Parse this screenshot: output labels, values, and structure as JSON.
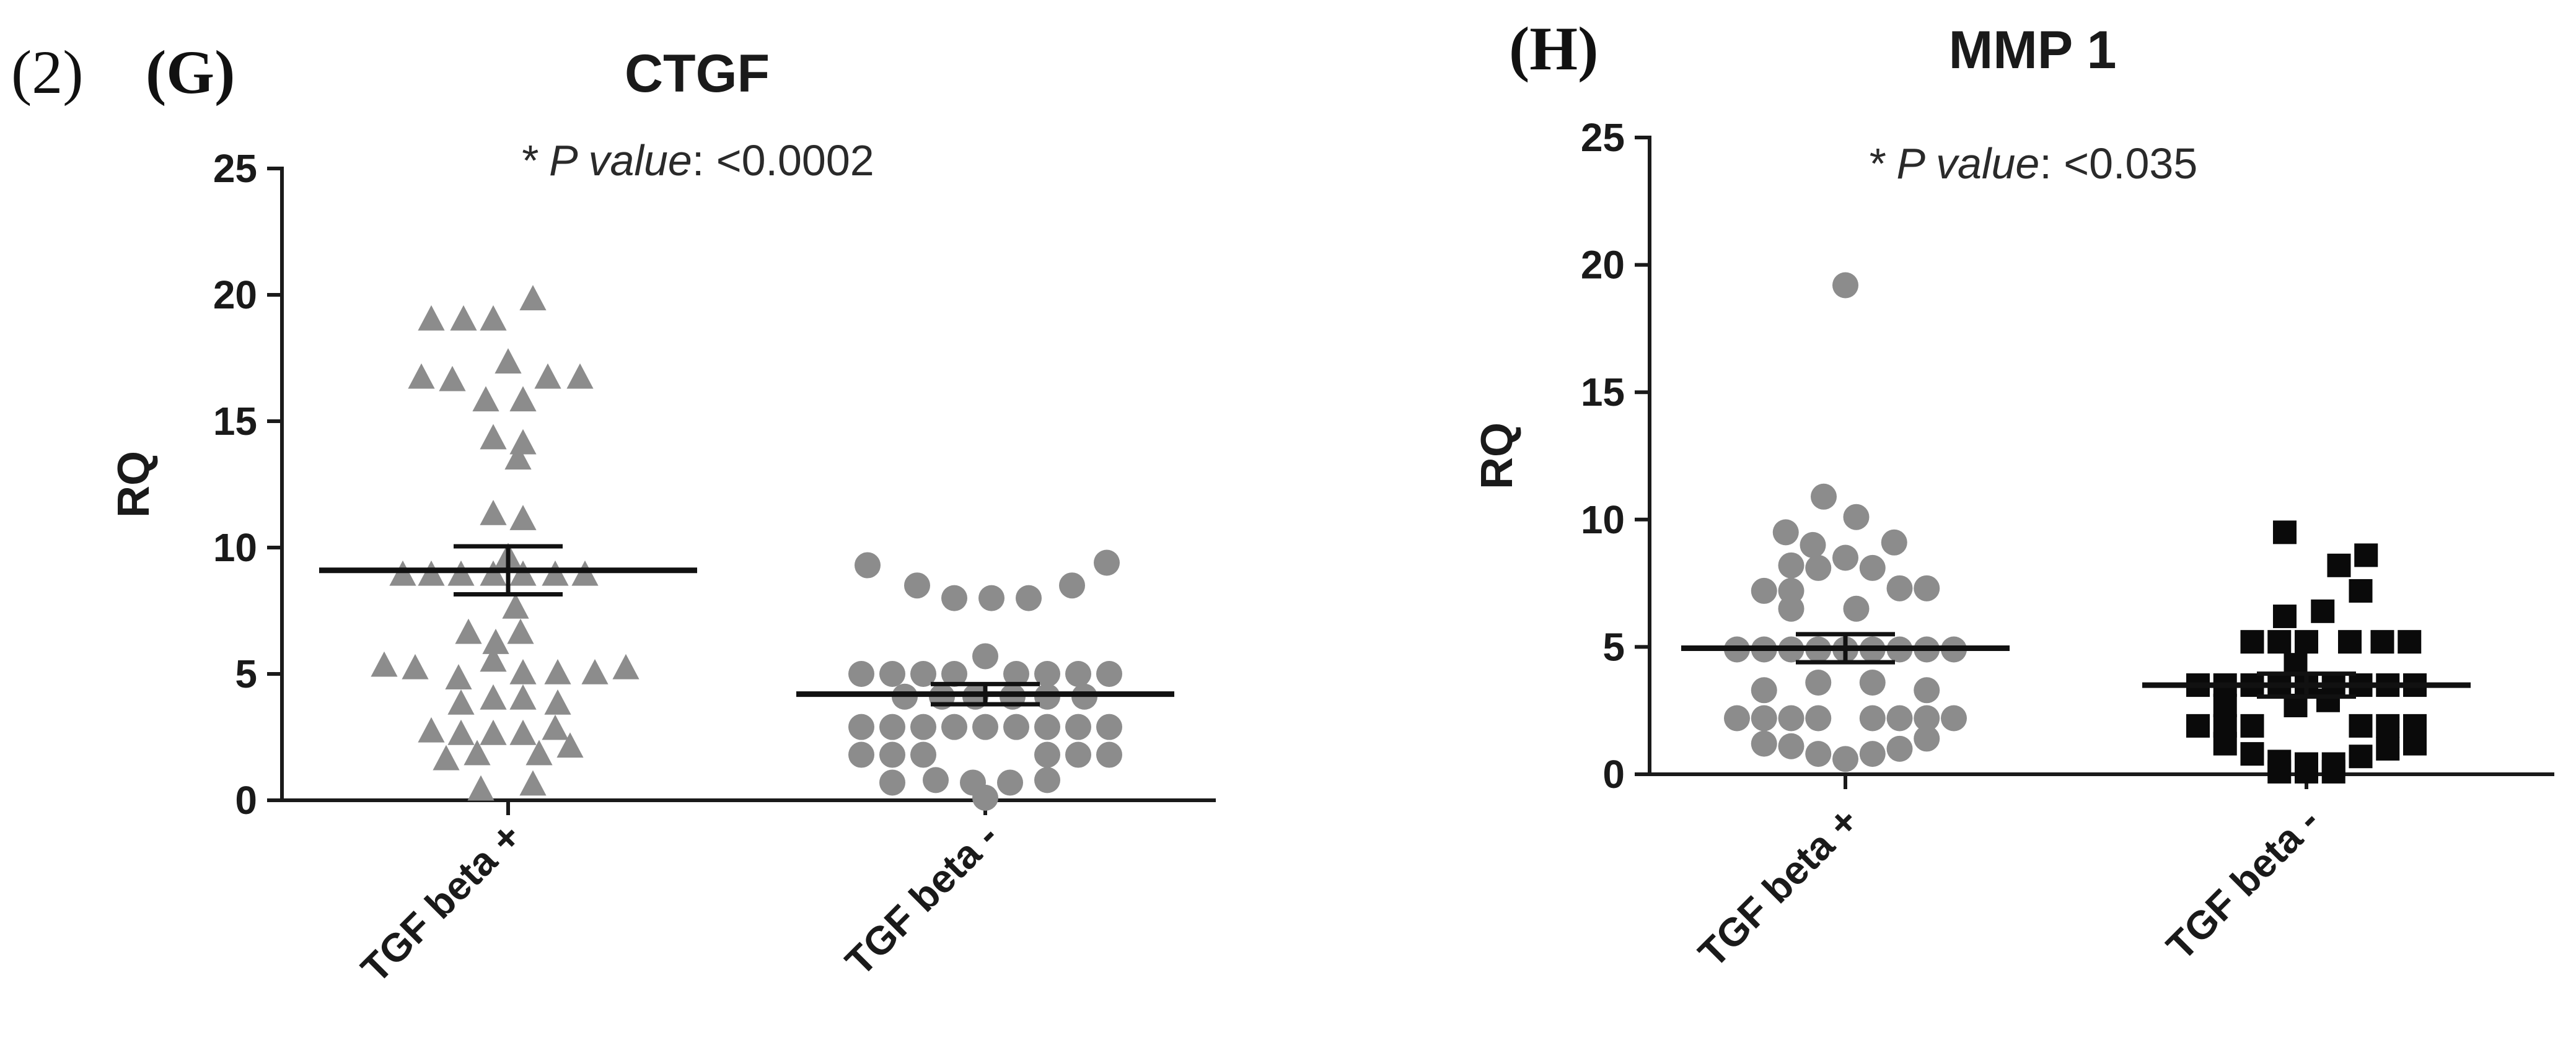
{
  "figure_label": "(2)",
  "colors": {
    "gray_marker": "#8c8c8c",
    "black_marker": "#0a0a0a",
    "axis": "#1a1a1a"
  },
  "chart_data": [
    {
      "panel": "(G)",
      "type": "scatter",
      "title": "CTGF",
      "annotation": {
        "prefix": "* ",
        "p_label": "P value",
        "suffix": ": <0.0002"
      },
      "ylabel": "RQ",
      "ylim": [
        0,
        25
      ],
      "yticks": [
        "0",
        "5",
        "10",
        "15",
        "20",
        "25"
      ],
      "categories": [
        "TGF beta +",
        "TGF beta -"
      ],
      "series": [
        {
          "name": "TGF beta +",
          "marker": "triangle",
          "color": "#8c8c8c",
          "mean": 9.1,
          "sem": 0.95,
          "points": [
            [
              -0.62,
              19.0
            ],
            [
              -0.36,
              19.0
            ],
            [
              -0.12,
              19.0
            ],
            [
              0.2,
              19.8
            ],
            [
              -0.7,
              16.7
            ],
            [
              -0.45,
              16.6
            ],
            [
              0.0,
              17.3
            ],
            [
              0.32,
              16.7
            ],
            [
              0.58,
              16.7
            ],
            [
              -0.18,
              15.8
            ],
            [
              0.12,
              15.8
            ],
            [
              -0.12,
              14.3
            ],
            [
              0.12,
              14.1
            ],
            [
              0.08,
              13.5
            ],
            [
              -0.12,
              11.3
            ],
            [
              0.12,
              11.1
            ],
            [
              0.0,
              9.6
            ],
            [
              -0.85,
              8.9
            ],
            [
              -0.62,
              8.9
            ],
            [
              -0.38,
              8.9
            ],
            [
              -0.12,
              8.9
            ],
            [
              0.12,
              8.9
            ],
            [
              0.38,
              8.9
            ],
            [
              0.62,
              8.9
            ],
            [
              0.06,
              7.6
            ],
            [
              -0.32,
              6.6
            ],
            [
              -0.1,
              6.2
            ],
            [
              0.1,
              6.6
            ],
            [
              -1.0,
              5.3
            ],
            [
              -0.75,
              5.2
            ],
            [
              -0.4,
              4.8
            ],
            [
              -0.12,
              5.5
            ],
            [
              0.12,
              5.0
            ],
            [
              0.4,
              5.0
            ],
            [
              0.7,
              5.0
            ],
            [
              0.95,
              5.2
            ],
            [
              -0.38,
              3.8
            ],
            [
              -0.12,
              4.0
            ],
            [
              0.12,
              4.0
            ],
            [
              0.4,
              3.8
            ],
            [
              -0.62,
              2.7
            ],
            [
              -0.38,
              2.6
            ],
            [
              -0.12,
              2.6
            ],
            [
              0.12,
              2.6
            ],
            [
              0.38,
              2.8
            ],
            [
              -0.5,
              1.6
            ],
            [
              -0.25,
              1.8
            ],
            [
              0.25,
              1.8
            ],
            [
              0.5,
              2.1
            ],
            [
              -0.22,
              0.4
            ],
            [
              0.2,
              0.6
            ]
          ]
        },
        {
          "name": "TGF beta -",
          "marker": "circle",
          "color": "#8c8c8c",
          "mean": 4.2,
          "sem": 0.4,
          "points": [
            [
              -0.95,
              9.3
            ],
            [
              -0.55,
              8.5
            ],
            [
              -0.25,
              8.0
            ],
            [
              0.05,
              8.0
            ],
            [
              0.35,
              8.0
            ],
            [
              0.7,
              8.5
            ],
            [
              0.98,
              9.4
            ],
            [
              -1.0,
              5.0
            ],
            [
              -0.75,
              5.0
            ],
            [
              -0.5,
              5.0
            ],
            [
              -0.25,
              5.0
            ],
            [
              0.0,
              5.7
            ],
            [
              0.25,
              5.0
            ],
            [
              0.5,
              5.0
            ],
            [
              0.75,
              5.0
            ],
            [
              1.0,
              5.0
            ],
            [
              -0.65,
              4.1
            ],
            [
              -0.35,
              4.1
            ],
            [
              -0.08,
              4.1
            ],
            [
              0.22,
              4.1
            ],
            [
              0.5,
              4.1
            ],
            [
              0.8,
              4.1
            ],
            [
              -1.0,
              2.9
            ],
            [
              -0.75,
              2.9
            ],
            [
              -0.5,
              2.9
            ],
            [
              -0.25,
              2.9
            ],
            [
              0.0,
              2.9
            ],
            [
              0.25,
              2.9
            ],
            [
              0.5,
              2.9
            ],
            [
              0.75,
              2.9
            ],
            [
              1.0,
              2.9
            ],
            [
              -1.0,
              1.8
            ],
            [
              -0.75,
              1.8
            ],
            [
              -0.5,
              1.8
            ],
            [
              0.5,
              1.8
            ],
            [
              0.75,
              1.8
            ],
            [
              1.0,
              1.8
            ],
            [
              -0.75,
              0.7
            ],
            [
              -0.4,
              0.8
            ],
            [
              -0.1,
              0.7
            ],
            [
              0.2,
              0.7
            ],
            [
              0.5,
              0.8
            ],
            [
              0.0,
              0.1
            ]
          ]
        }
      ]
    },
    {
      "panel": "(H)",
      "type": "scatter",
      "title": "MMP 1",
      "annotation": {
        "prefix": "* ",
        "p_label": "P value",
        "suffix": ": <0.035"
      },
      "ylabel": "RQ",
      "ylim": [
        0,
        25
      ],
      "yticks": [
        "0",
        "5",
        "10",
        "15",
        "20",
        "25"
      ],
      "categories": [
        "TGF beta +",
        "TGF beta -"
      ],
      "series": [
        {
          "name": "TGF beta +",
          "marker": "circle",
          "color": "#8c8c8c",
          "mean": 4.95,
          "sem": 0.55,
          "points": [
            [
              0.0,
              19.2
            ],
            [
              -0.2,
              10.9
            ],
            [
              0.1,
              10.1
            ],
            [
              -0.55,
              9.5
            ],
            [
              -0.3,
              9.0
            ],
            [
              0.45,
              9.1
            ],
            [
              0.0,
              8.5
            ],
            [
              -0.5,
              8.2
            ],
            [
              -0.25,
              8.1
            ],
            [
              0.25,
              8.1
            ],
            [
              -0.75,
              7.2
            ],
            [
              -0.5,
              7.2
            ],
            [
              0.5,
              7.3
            ],
            [
              0.75,
              7.3
            ],
            [
              -0.5,
              6.5
            ],
            [
              0.1,
              6.5
            ],
            [
              -1.0,
              4.9
            ],
            [
              -0.75,
              4.9
            ],
            [
              -0.5,
              4.9
            ],
            [
              -0.25,
              4.9
            ],
            [
              0.0,
              4.9
            ],
            [
              0.25,
              4.9
            ],
            [
              0.5,
              4.9
            ],
            [
              0.75,
              4.9
            ],
            [
              1.0,
              4.9
            ],
            [
              -0.75,
              3.3
            ],
            [
              -0.25,
              3.6
            ],
            [
              0.25,
              3.6
            ],
            [
              0.75,
              3.3
            ],
            [
              -1.0,
              2.2
            ],
            [
              -0.75,
              2.2
            ],
            [
              -0.5,
              2.2
            ],
            [
              -0.25,
              2.2
            ],
            [
              0.25,
              2.2
            ],
            [
              0.5,
              2.2
            ],
            [
              0.75,
              2.2
            ],
            [
              1.0,
              2.2
            ],
            [
              -0.75,
              1.2
            ],
            [
              -0.5,
              1.1
            ],
            [
              -0.25,
              0.8
            ],
            [
              0.0,
              0.6
            ],
            [
              0.25,
              0.8
            ],
            [
              0.5,
              1.0
            ],
            [
              0.75,
              1.4
            ]
          ]
        },
        {
          "name": "TGF beta -",
          "marker": "square",
          "color": "#0a0a0a",
          "mean": 3.5,
          "sem": 0.45,
          "points": [
            [
              -0.2,
              9.5
            ],
            [
              0.55,
              8.6
            ],
            [
              0.3,
              8.2
            ],
            [
              0.5,
              7.2
            ],
            [
              -0.2,
              6.2
            ],
            [
              0.15,
              6.4
            ],
            [
              -0.5,
              5.2
            ],
            [
              -0.25,
              5.2
            ],
            [
              0.0,
              5.2
            ],
            [
              0.4,
              5.2
            ],
            [
              0.7,
              5.2
            ],
            [
              0.95,
              5.2
            ],
            [
              -0.1,
              4.3
            ],
            [
              -1.0,
              3.5
            ],
            [
              -0.75,
              3.5
            ],
            [
              -0.5,
              3.5
            ],
            [
              -0.25,
              3.5
            ],
            [
              0.0,
              3.5
            ],
            [
              0.25,
              3.5
            ],
            [
              0.5,
              3.5
            ],
            [
              0.75,
              3.5
            ],
            [
              1.0,
              3.5
            ],
            [
              -0.75,
              2.7
            ],
            [
              -0.1,
              2.7
            ],
            [
              0.2,
              2.9
            ],
            [
              -1.0,
              1.9
            ],
            [
              -0.75,
              1.9
            ],
            [
              -0.5,
              1.9
            ],
            [
              0.5,
              1.9
            ],
            [
              0.75,
              1.9
            ],
            [
              1.0,
              1.9
            ],
            [
              -0.75,
              1.2
            ],
            [
              -0.5,
              0.8
            ],
            [
              -0.25,
              0.5
            ],
            [
              0.0,
              0.4
            ],
            [
              0.25,
              0.4
            ],
            [
              0.5,
              0.7
            ],
            [
              0.75,
              1.0
            ],
            [
              1.0,
              1.2
            ],
            [
              -0.25,
              0.1
            ],
            [
              0.0,
              0.1
            ],
            [
              0.25,
              0.1
            ]
          ]
        }
      ]
    }
  ]
}
